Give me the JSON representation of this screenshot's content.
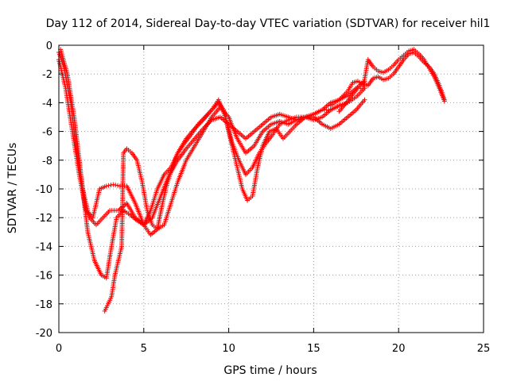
{
  "chart_data": {
    "type": "scatter",
    "title": "Day 112 of 2014, Sidereal Day-to-day VTEC variation (SDTVAR) for receiver hil1",
    "xlabel": "GPS time / hours",
    "ylabel": "SDTVAR / TECUs",
    "xlim": [
      0,
      25
    ],
    "ylim": [
      -20,
      0
    ],
    "x_ticks": [
      0,
      5,
      10,
      15,
      20,
      25
    ],
    "y_ticks": [
      0,
      -2,
      -4,
      -6,
      -8,
      -10,
      -12,
      -14,
      -16,
      -18,
      -20
    ],
    "grid": true,
    "legend": "none",
    "marker": "plus",
    "color": "#ff0000",
    "series": [
      {
        "x": [
          0.0,
          0.3,
          0.7,
          1.0,
          1.4,
          1.8,
          2.2,
          2.6,
          3.0,
          3.5,
          4.0,
          4.5,
          5.0,
          5.5,
          6.0,
          6.5,
          7.0,
          7.5,
          8.0,
          8.5,
          9.0,
          9.5,
          10.0,
          10.5,
          11.0,
          11.5,
          12.0,
          12.5,
          13.0,
          13.5,
          14.0,
          14.5,
          15.0,
          15.5,
          16.0,
          16.5,
          17.0,
          17.5,
          18.0
        ],
        "y": [
          -0.5,
          -1.5,
          -4.0,
          -7.0,
          -10.0,
          -12.0,
          -12.5,
          -12.0,
          -11.5,
          -11.5,
          -11.0,
          -12.0,
          -12.5,
          -12.0,
          -10.5,
          -9.0,
          -8.0,
          -7.2,
          -6.5,
          -5.8,
          -5.2,
          -5.0,
          -5.5,
          -6.0,
          -6.5,
          -6.0,
          -5.5,
          -5.0,
          -4.8,
          -5.0,
          -5.2,
          -5.0,
          -4.8,
          -4.5,
          -4.0,
          -3.8,
          -3.5,
          -3.0,
          -2.5
        ]
      },
      {
        "x": [
          0.0,
          0.4,
          0.8,
          1.2,
          1.6,
          2.0,
          2.4,
          2.8,
          3.2,
          3.6,
          4.0,
          4.5,
          5.0,
          5.4,
          5.8,
          6.2,
          6.6,
          7.0,
          7.5,
          8.0,
          8.5,
          9.0,
          9.5,
          10.0,
          10.5,
          11.0,
          11.5,
          12.0,
          12.5,
          13.0,
          13.5,
          14.0,
          14.5,
          15.0,
          15.5,
          16.0,
          16.5,
          17.0
        ],
        "y": [
          -1.0,
          -3.0,
          -6.0,
          -9.0,
          -11.5,
          -12.0,
          -10.0,
          -9.8,
          -9.7,
          -9.8,
          -9.8,
          -11.0,
          -12.5,
          -13.2,
          -12.8,
          -12.5,
          -11.0,
          -9.5,
          -8.0,
          -7.0,
          -6.0,
          -5.0,
          -4.3,
          -5.0,
          -6.5,
          -7.5,
          -7.0,
          -6.0,
          -5.5,
          -5.3,
          -5.5,
          -5.2,
          -5.0,
          -5.2,
          -5.0,
          -4.5,
          -4.2,
          -4.0
        ]
      },
      {
        "x": [
          0.1,
          0.5,
          0.9,
          1.3,
          1.7,
          2.1,
          2.5,
          2.8,
          3.1,
          3.4,
          3.8,
          4.2,
          4.6,
          5.0,
          5.4,
          5.8,
          6.2,
          6.6,
          7.0,
          7.5,
          8.0,
          8.5,
          9.0,
          9.4,
          9.8,
          10.2,
          10.6,
          11.0,
          11.4,
          11.8,
          12.2,
          12.6,
          13.0,
          13.5,
          14.0,
          14.5,
          15.0,
          15.5,
          16.0,
          16.5,
          17.0,
          17.5,
          18.0
        ],
        "y": [
          -0.3,
          -2.0,
          -5.0,
          -9.0,
          -13.0,
          -15.0,
          -16.0,
          -16.2,
          -14.0,
          -12.0,
          -11.5,
          -11.8,
          -12.2,
          -12.5,
          -11.5,
          -10.0,
          -9.0,
          -8.5,
          -7.5,
          -6.5,
          -5.8,
          -5.2,
          -4.5,
          -3.8,
          -5.0,
          -6.8,
          -8.0,
          -9.0,
          -8.5,
          -7.5,
          -6.8,
          -6.2,
          -5.5,
          -5.2,
          -5.0,
          -5.0,
          -4.8,
          -4.5,
          -4.5,
          -4.2,
          -4.0,
          -3.6,
          -3.0
        ]
      },
      {
        "x": [
          2.7,
          2.9,
          3.1,
          3.3,
          3.5,
          3.7,
          3.8,
          4.0,
          4.3,
          4.6,
          4.9,
          5.2,
          5.5,
          5.8,
          6.1,
          6.4,
          6.7,
          7.0,
          7.4,
          7.8,
          8.2,
          8.6,
          9.0,
          9.4,
          9.7,
          10.0,
          10.4,
          10.8,
          11.1,
          11.4,
          11.7,
          12.0,
          12.4,
          12.8,
          13.2,
          13.6,
          14.0,
          14.5,
          15.0,
          15.5,
          16.0,
          16.5,
          17.0,
          17.5,
          18.0
        ],
        "y": [
          -18.5,
          -18.0,
          -17.5,
          -16.0,
          -15.0,
          -14.0,
          -7.5,
          -7.2,
          -7.5,
          -8.0,
          -9.5,
          -11.5,
          -12.5,
          -12.8,
          -11.0,
          -9.5,
          -8.5,
          -7.5,
          -6.8,
          -6.2,
          -5.5,
          -5.0,
          -4.5,
          -4.0,
          -4.5,
          -6.0,
          -8.0,
          -10.0,
          -10.8,
          -10.5,
          -8.5,
          -7.0,
          -6.0,
          -5.8,
          -6.5,
          -6.0,
          -5.5,
          -5.0,
          -5.0,
          -5.5,
          -5.8,
          -5.5,
          -5.0,
          -4.5,
          -3.8
        ]
      },
      {
        "x": [
          16.0,
          16.5,
          17.0,
          17.3,
          17.6,
          17.9,
          18.2,
          18.5,
          18.8,
          19.1,
          19.4,
          19.7,
          20.0,
          20.3,
          20.6,
          20.9,
          21.2,
          21.5,
          21.8,
          22.1,
          22.4,
          22.7
        ],
        "y": [
          -4.2,
          -3.8,
          -3.2,
          -2.6,
          -2.5,
          -2.7,
          -2.8,
          -2.3,
          -2.2,
          -2.4,
          -2.3,
          -2.0,
          -1.5,
          -1.0,
          -0.6,
          -0.5,
          -0.8,
          -1.2,
          -1.5,
          -2.0,
          -2.8,
          -3.8
        ]
      },
      {
        "x": [
          16.5,
          17.0,
          17.3,
          17.6,
          17.9,
          18.2,
          18.5,
          18.8,
          19.1,
          19.4,
          19.7,
          20.0,
          20.3,
          20.6,
          20.9,
          21.2,
          21.5,
          21.8,
          22.1,
          22.4,
          22.7
        ],
        "y": [
          -4.6,
          -3.9,
          -3.4,
          -3.0,
          -3.0,
          -1.0,
          -1.5,
          -1.8,
          -1.9,
          -1.7,
          -1.4,
          -1.0,
          -0.7,
          -0.4,
          -0.3,
          -0.6,
          -1.0,
          -1.6,
          -2.2,
          -3.0,
          -3.9
        ]
      }
    ]
  }
}
